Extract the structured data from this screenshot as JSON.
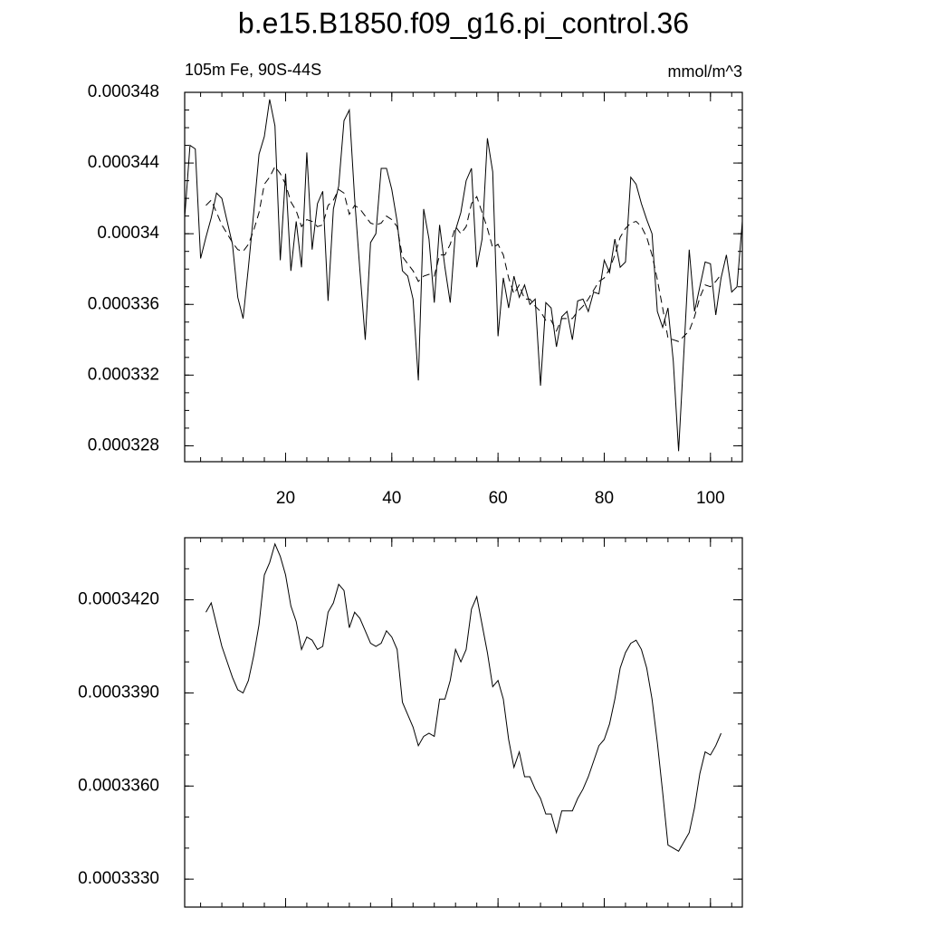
{
  "chart_data": [
    {
      "type": "line",
      "title": "b.e15.B1850.f09_g16.pi_control.36",
      "subtitle_left": "105m Fe, 90S-44S",
      "subtitle_right": "mmol/m^3",
      "x": [
        1,
        2,
        3,
        4,
        5,
        6,
        7,
        8,
        9,
        10,
        11,
        12,
        13,
        14,
        15,
        16,
        17,
        18,
        19,
        20,
        21,
        22,
        23,
        24,
        25,
        26,
        27,
        28,
        29,
        30,
        31,
        32,
        33,
        34,
        35,
        36,
        37,
        38,
        39,
        40,
        41,
        42,
        43,
        44,
        45,
        46,
        47,
        48,
        49,
        50,
        51,
        52,
        53,
        54,
        55,
        56,
        57,
        58,
        59,
        60,
        61,
        62,
        63,
        64,
        65,
        66,
        67,
        68,
        69,
        70,
        71,
        72,
        73,
        74,
        75,
        76,
        77,
        78,
        79,
        80,
        81,
        82,
        83,
        84,
        85,
        86,
        87,
        88,
        89,
        90,
        91,
        92,
        93,
        94,
        95,
        96,
        97,
        98,
        99,
        100,
        101,
        102,
        103,
        104,
        105,
        106
      ],
      "series": [
        {
          "color": "#000000",
          "line_style": "solid",
          "values": [
            0.0003409,
            0.000345,
            0.0003448,
            0.0003386,
            0.0003398,
            0.0003409,
            0.0003423,
            0.000342,
            0.0003407,
            0.0003394,
            0.0003364,
            0.0003352,
            0.0003381,
            0.0003412,
            0.0003445,
            0.0003455,
            0.0003476,
            0.0003461,
            0.0003385,
            0.0003434,
            0.0003379,
            0.0003407,
            0.0003381,
            0.0003446,
            0.0003391,
            0.0003417,
            0.0003424,
            0.0003362,
            0.0003414,
            0.0003427,
            0.0003464,
            0.000347,
            0.000342,
            0.0003379,
            0.000334,
            0.0003395,
            0.00034,
            0.0003437,
            0.0003437,
            0.0003425,
            0.0003407,
            0.0003379,
            0.0003376,
            0.0003363,
            0.0003317,
            0.0003414,
            0.0003397,
            0.0003361,
            0.0003405,
            0.0003381,
            0.0003361,
            0.0003402,
            0.0003412,
            0.000343,
            0.0003437,
            0.0003381,
            0.0003397,
            0.0003454,
            0.0003435,
            0.0003342,
            0.0003375,
            0.0003358,
            0.0003376,
            0.0003364,
            0.0003371,
            0.000336,
            0.0003363,
            0.0003314,
            0.0003361,
            0.0003358,
            0.0003336,
            0.0003353,
            0.0003356,
            0.000334,
            0.0003362,
            0.0003363,
            0.0003356,
            0.0003367,
            0.0003366,
            0.0003385,
            0.0003378,
            0.0003397,
            0.0003381,
            0.0003384,
            0.0003432,
            0.0003428,
            0.0003417,
            0.0003408,
            0.00034,
            0.0003356,
            0.0003347,
            0.0003358,
            0.0003328,
            0.0003277,
            0.0003333,
            0.0003391,
            0.0003356,
            0.000337,
            0.0003384,
            0.0003383,
            0.0003354,
            0.0003375,
            0.0003388,
            0.0003367,
            0.000337,
            0.0003407
          ]
        },
        {
          "color": "#000000",
          "line_style": "dashed",
          "values": [
            null,
            null,
            null,
            null,
            0.0003416,
            0.0003419,
            0.0003412,
            0.0003405,
            0.00034,
            0.0003395,
            0.0003391,
            0.000339,
            0.0003394,
            0.0003402,
            0.0003412,
            0.0003428,
            0.0003432,
            0.0003438,
            0.0003434,
            0.0003428,
            0.0003418,
            0.0003413,
            0.0003404,
            0.0003408,
            0.0003407,
            0.0003404,
            0.0003405,
            0.0003416,
            0.0003419,
            0.0003425,
            0.0003423,
            0.0003411,
            0.0003416,
            0.0003414,
            0.000341,
            0.0003406,
            0.0003405,
            0.0003406,
            0.000341,
            0.0003408,
            0.0003404,
            0.0003387,
            0.0003383,
            0.0003379,
            0.0003373,
            0.0003376,
            0.0003377,
            0.0003376,
            0.0003388,
            0.0003388,
            0.0003394,
            0.0003404,
            0.00034,
            0.0003404,
            0.0003417,
            0.0003421,
            0.0003412,
            0.0003403,
            0.0003392,
            0.0003394,
            0.0003388,
            0.0003375,
            0.0003366,
            0.0003371,
            0.0003363,
            0.0003363,
            0.0003359,
            0.0003356,
            0.0003351,
            0.0003351,
            0.0003345,
            0.0003352,
            0.0003352,
            0.0003352,
            0.0003356,
            0.0003359,
            0.0003363,
            0.0003368,
            0.0003373,
            0.0003375,
            0.000338,
            0.0003388,
            0.0003398,
            0.0003403,
            0.0003406,
            0.0003407,
            0.0003404,
            0.0003398,
            0.0003388,
            0.0003374,
            0.0003358,
            0.0003341,
            0.000334,
            0.0003339,
            0.0003342,
            0.0003345,
            0.0003353,
            0.0003364,
            0.0003371,
            0.000337,
            0.0003373,
            0.0003377,
            null,
            null,
            null,
            null
          ]
        }
      ],
      "xlim": [
        1,
        106
      ],
      "xticks": [
        20,
        40,
        60,
        80,
        100
      ],
      "ylim": [
        0.0003271,
        0.000348
      ],
      "yticks": [
        0.000328,
        0.000332,
        0.000336,
        0.00034,
        0.000344,
        0.000348
      ]
    },
    {
      "type": "line",
      "x": [
        5,
        6,
        7,
        8,
        9,
        10,
        11,
        12,
        13,
        14,
        15,
        16,
        17,
        18,
        19,
        20,
        21,
        22,
        23,
        24,
        25,
        26,
        27,
        28,
        29,
        30,
        31,
        32,
        33,
        34,
        35,
        36,
        37,
        38,
        39,
        40,
        41,
        42,
        43,
        44,
        45,
        46,
        47,
        48,
        49,
        50,
        51,
        52,
        53,
        54,
        55,
        56,
        57,
        58,
        59,
        60,
        61,
        62,
        63,
        64,
        65,
        66,
        67,
        68,
        69,
        70,
        71,
        72,
        73,
        74,
        75,
        76,
        77,
        78,
        79,
        80,
        81,
        82,
        83,
        84,
        85,
        86,
        87,
        88,
        89,
        90,
        91,
        92,
        93,
        94,
        95,
        96,
        97,
        98,
        99,
        100,
        101,
        102
      ],
      "series": [
        {
          "color": "#000000",
          "line_style": "solid",
          "values": [
            0.0003416,
            0.0003419,
            0.0003412,
            0.0003405,
            0.00034,
            0.0003395,
            0.0003391,
            0.000339,
            0.0003394,
            0.0003402,
            0.0003412,
            0.0003428,
            0.0003432,
            0.0003438,
            0.0003434,
            0.0003428,
            0.0003418,
            0.0003413,
            0.0003404,
            0.0003408,
            0.0003407,
            0.0003404,
            0.0003405,
            0.0003416,
            0.0003419,
            0.0003425,
            0.0003423,
            0.0003411,
            0.0003416,
            0.0003414,
            0.000341,
            0.0003406,
            0.0003405,
            0.0003406,
            0.000341,
            0.0003408,
            0.0003404,
            0.0003387,
            0.0003383,
            0.0003379,
            0.0003373,
            0.0003376,
            0.0003377,
            0.0003376,
            0.0003388,
            0.0003388,
            0.0003394,
            0.0003404,
            0.00034,
            0.0003404,
            0.0003417,
            0.0003421,
            0.0003412,
            0.0003403,
            0.0003392,
            0.0003394,
            0.0003388,
            0.0003375,
            0.0003366,
            0.0003371,
            0.0003363,
            0.0003363,
            0.0003359,
            0.0003356,
            0.0003351,
            0.0003351,
            0.0003345,
            0.0003352,
            0.0003352,
            0.0003352,
            0.0003356,
            0.0003359,
            0.0003363,
            0.0003368,
            0.0003373,
            0.0003375,
            0.000338,
            0.0003388,
            0.0003398,
            0.0003403,
            0.0003406,
            0.0003407,
            0.0003404,
            0.0003398,
            0.0003388,
            0.0003374,
            0.0003358,
            0.0003341,
            0.000334,
            0.0003339,
            0.0003342,
            0.0003345,
            0.0003353,
            0.0003364,
            0.0003371,
            0.000337,
            0.0003373,
            0.0003377
          ]
        }
      ],
      "xlim": [
        1,
        106
      ],
      "xticks": [
        20,
        40,
        60,
        80,
        100
      ],
      "ylim": [
        0.0003321,
        0.000344
      ],
      "yticks": [
        {
          "value": 0.000333,
          "label": "0.0003330"
        },
        {
          "value": 0.000336,
          "label": "0.0003360"
        },
        {
          "value": 0.000339,
          "label": "0.0003390"
        },
        {
          "value": 0.000342,
          "label": "0.0003420"
        }
      ]
    }
  ]
}
